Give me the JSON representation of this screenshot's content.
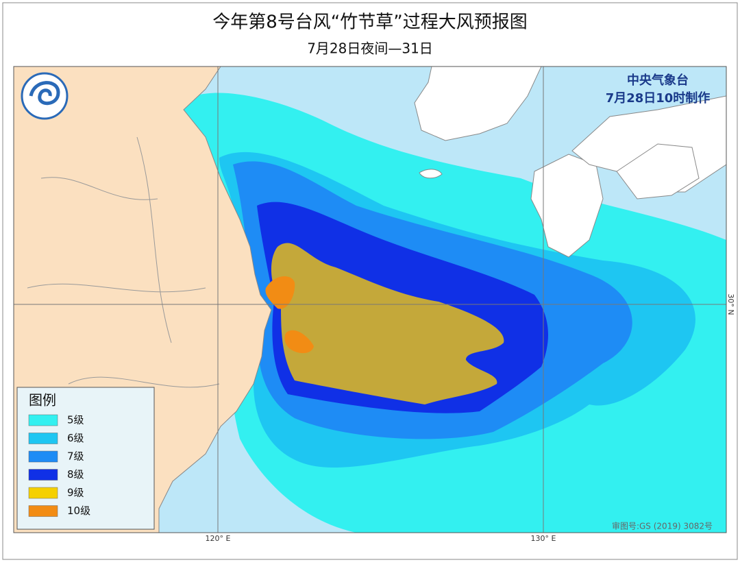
{
  "header": {
    "title": "今年第8号台风“竹节草”过程大风预报图",
    "subtitle": "7月28日夜间—31日"
  },
  "issuer": {
    "agency": "中央气象台",
    "issued": "7月28日10时制作"
  },
  "legend": {
    "title": "图例",
    "items": [
      {
        "label": "5级",
        "color": "#33f0f0"
      },
      {
        "label": "6级",
        "color": "#1ec6f2"
      },
      {
        "label": "7级",
        "color": "#1e8cf5"
      },
      {
        "label": "8级",
        "color": "#1030e6"
      },
      {
        "label": "9级",
        "color": "#f5d000"
      },
      {
        "label": "10级",
        "color": "#f28c14"
      }
    ]
  },
  "grid": {
    "lon_labels": [
      "120° E",
      "130° E"
    ],
    "lat_labels": [
      "30° N"
    ]
  },
  "approval": "审图号:GS (2019) 3082号"
}
